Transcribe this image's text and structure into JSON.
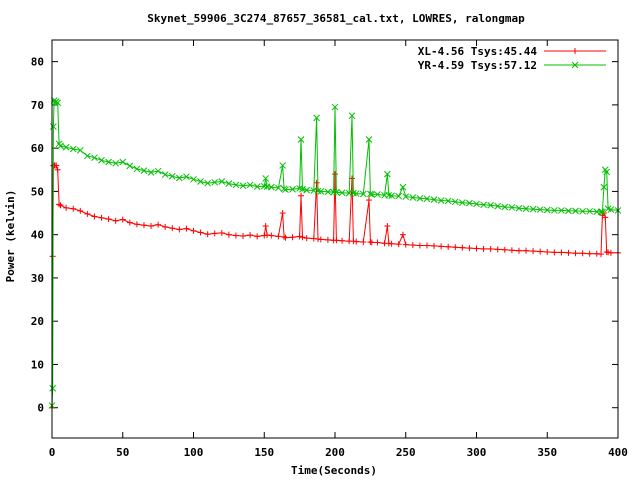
{
  "chart_data": {
    "type": "line",
    "title": "Skynet_59906_3C274_87657_36581_cal.txt, LOWRES, ralongmap",
    "xlabel": "Time(Seconds)",
    "ylabel": "Power (kelvin)",
    "xlim": [
      0,
      400
    ],
    "ylim": [
      -7,
      85
    ],
    "xticks": [
      0,
      50,
      100,
      150,
      200,
      250,
      300,
      350,
      400
    ],
    "yticks": [
      0,
      10,
      20,
      30,
      40,
      50,
      60,
      70,
      80
    ],
    "grid": false,
    "legend_position": "top-right",
    "series": [
      {
        "name": "XL-4.56 Tsys:45.44",
        "color": "#ff0000",
        "marker": "plus",
        "x": [
          0,
          0.5,
          1,
          1.5,
          2,
          3,
          4,
          5,
          6,
          10,
          15,
          20,
          25,
          30,
          35,
          40,
          45,
          50,
          55,
          60,
          65,
          70,
          75,
          80,
          85,
          90,
          95,
          100,
          105,
          110,
          115,
          120,
          125,
          130,
          135,
          140,
          145,
          150,
          151,
          152,
          155,
          160,
          163,
          164,
          165,
          170,
          175,
          176,
          177,
          180,
          185,
          187,
          188,
          190,
          195,
          199,
          200,
          201,
          205,
          210,
          212,
          213,
          215,
          220,
          224,
          225,
          226,
          230,
          235,
          237,
          238,
          240,
          245,
          248,
          250,
          255,
          260,
          265,
          270,
          275,
          280,
          285,
          290,
          295,
          300,
          305,
          310,
          315,
          320,
          325,
          330,
          335,
          340,
          345,
          350,
          355,
          360,
          365,
          370,
          375,
          380,
          385,
          388,
          389,
          390,
          391,
          392,
          393,
          395,
          400
        ],
        "y": [
          0,
          35,
          56,
          56,
          56,
          56,
          55,
          47,
          46.8,
          46.2,
          46,
          45.5,
          44.8,
          44.2,
          43.9,
          43.6,
          43.2,
          43.5,
          42.8,
          42.4,
          42.2,
          42,
          42.3,
          41.8,
          41.5,
          41.2,
          41.4,
          40.9,
          40.5,
          40.1,
          40.3,
          40.4,
          40,
          39.8,
          39.7,
          39.9,
          39.6,
          39.8,
          42,
          39.9,
          39.8,
          39.6,
          45,
          39.5,
          39.3,
          39.4,
          39.6,
          49,
          39.4,
          39.2,
          39.1,
          52,
          39,
          38.9,
          38.8,
          38.7,
          54,
          38.7,
          38.6,
          38.5,
          53,
          38.5,
          38.4,
          38.3,
          48,
          38.3,
          38.2,
          38.2,
          38,
          42,
          38,
          37.9,
          37.8,
          40,
          37.7,
          37.6,
          37.5,
          37.5,
          37.4,
          37.3,
          37.2,
          37.1,
          37,
          36.9,
          36.8,
          36.7,
          36.7,
          36.6,
          36.5,
          36.4,
          36.3,
          36.3,
          36.2,
          36.1,
          36,
          35.9,
          35.9,
          35.8,
          35.7,
          35.7,
          35.6,
          35.6,
          35.5,
          44.5,
          45,
          44,
          36,
          35.9,
          35.8,
          35.8
        ]
      },
      {
        "name": "YR-4.59 Tsys:57.12",
        "color": "#00c000",
        "marker": "cross",
        "x": [
          0,
          0.5,
          1,
          1.5,
          2,
          3,
          4,
          5,
          6,
          10,
          15,
          20,
          25,
          30,
          35,
          40,
          45,
          50,
          55,
          60,
          65,
          70,
          75,
          80,
          85,
          90,
          95,
          100,
          105,
          110,
          115,
          120,
          125,
          130,
          135,
          140,
          145,
          150,
          151,
          152,
          155,
          160,
          163,
          164,
          165,
          170,
          175,
          176,
          177,
          180,
          185,
          187,
          188,
          190,
          195,
          199,
          200,
          201,
          205,
          210,
          212,
          213,
          215,
          220,
          224,
          225,
          226,
          230,
          235,
          237,
          238,
          240,
          245,
          248,
          250,
          255,
          260,
          265,
          270,
          275,
          280,
          285,
          290,
          295,
          300,
          305,
          310,
          315,
          320,
          325,
          330,
          335,
          340,
          345,
          350,
          355,
          360,
          365,
          370,
          375,
          380,
          385,
          388,
          389,
          390,
          391,
          392,
          393,
          395,
          400
        ],
        "y": [
          0.5,
          4.5,
          65,
          71,
          70.5,
          70.8,
          70.5,
          61,
          60.5,
          60.2,
          59.8,
          59.5,
          58.2,
          57.8,
          57.2,
          56.8,
          56.5,
          56.8,
          55.9,
          55.2,
          54.8,
          54.4,
          54.7,
          53.9,
          53.5,
          53.1,
          53.4,
          52.8,
          52.3,
          51.9,
          52.1,
          52.3,
          51.8,
          51.5,
          51.3,
          51.5,
          51.1,
          51.2,
          53,
          51.1,
          51,
          50.8,
          56,
          50.6,
          50.4,
          50.5,
          50.7,
          62,
          50.5,
          50.3,
          50.2,
          67,
          50.1,
          50,
          49.9,
          49.8,
          69.5,
          49.8,
          49.7,
          49.6,
          67.5,
          49.6,
          49.5,
          49.4,
          62,
          49.4,
          49.3,
          49.3,
          49.1,
          54,
          49.1,
          49,
          48.9,
          51,
          48.8,
          48.6,
          48.4,
          48.3,
          48.1,
          47.9,
          47.8,
          47.6,
          47.4,
          47.3,
          47.1,
          46.9,
          46.8,
          46.6,
          46.4,
          46.3,
          46.1,
          46,
          45.9,
          45.8,
          45.7,
          45.6,
          45.6,
          45.5,
          45.5,
          45.4,
          45.4,
          45.3,
          45.3,
          45.2,
          51,
          55,
          54.5,
          46,
          45.8,
          45.6
        ]
      }
    ]
  }
}
